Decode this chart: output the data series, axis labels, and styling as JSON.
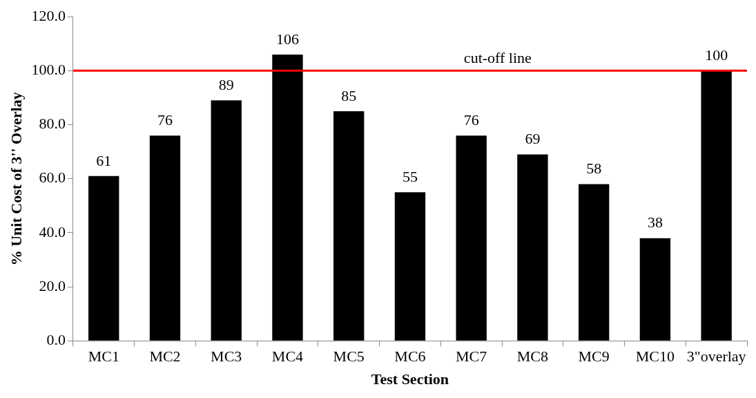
{
  "chart_data": {
    "type": "bar",
    "xlabel": "Test Section",
    "ylabel": "% Unit Cost of 3'' Overlay",
    "categories": [
      "MC1",
      "MC2",
      "MC3",
      "MC4",
      "MC5",
      "MC6",
      "MC7",
      "MC8",
      "MC9",
      "MC10",
      "3\"overlay"
    ],
    "values": [
      61,
      76,
      89,
      106,
      85,
      55,
      76,
      69,
      58,
      38,
      100
    ],
    "color": "#000000",
    "ylim": [
      0,
      120
    ],
    "yticks": [
      {
        "value": 0,
        "label": "0.0"
      },
      {
        "value": 20,
        "label": "20.0"
      },
      {
        "value": 40,
        "label": "40.0"
      },
      {
        "value": 60,
        "label": "60.0"
      },
      {
        "value": 80,
        "label": "80.0"
      },
      {
        "value": 100,
        "label": "100.0"
      },
      {
        "value": 120,
        "label": "120.0"
      }
    ],
    "data_labels": true,
    "grid": false,
    "legend": false,
    "ref_lines": [
      {
        "axis": "y",
        "value": 100,
        "label": "cut-off line",
        "color": "#ff0000"
      }
    ]
  }
}
